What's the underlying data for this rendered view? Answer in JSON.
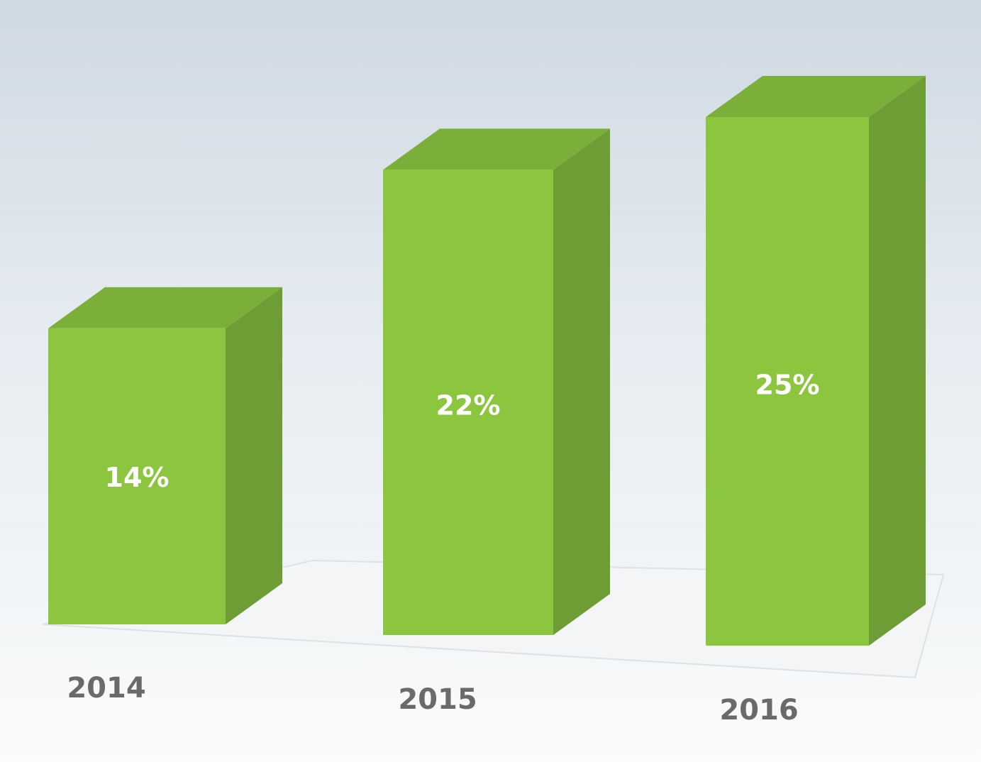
{
  "chart_data": {
    "type": "bar3d",
    "categories": [
      "2014",
      "2015",
      "2016"
    ],
    "values": [
      14,
      22,
      25
    ],
    "value_labels": [
      "14%",
      "22%",
      "25%"
    ],
    "color": "#8cc63f"
  }
}
